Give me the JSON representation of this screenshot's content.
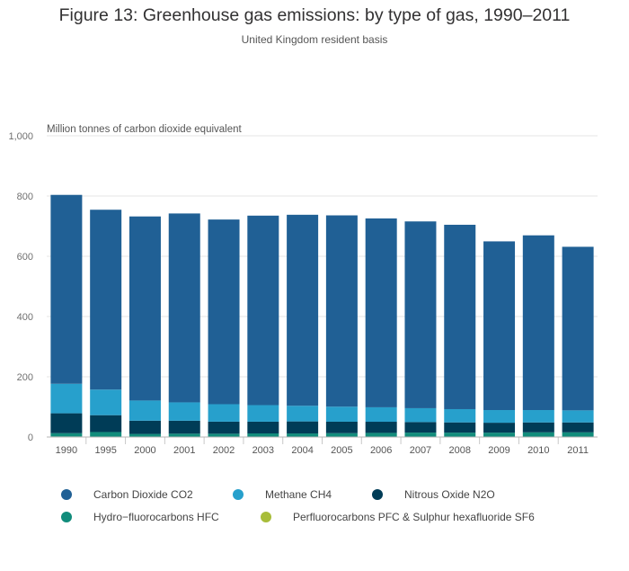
{
  "chart_data": {
    "type": "bar",
    "stacked": true,
    "title": "Figure 13: Greenhouse gas emissions: by type of gas, 1990–2011",
    "subtitle": "United Kingdom resident basis",
    "ylabel": "Million tonnes of carbon dioxide equivalent",
    "ylim": [
      0,
      1000
    ],
    "yticks": [
      0,
      200,
      400,
      600,
      800,
      1000
    ],
    "ytick_labels": [
      "0",
      "200",
      "400",
      "600",
      "800",
      "1,000"
    ],
    "grid": true,
    "legend_position": "bottom",
    "categories": [
      "1990",
      "1995",
      "2000",
      "2001",
      "2002",
      "2003",
      "2004",
      "2005",
      "2006",
      "2007",
      "2008",
      "2009",
      "2010",
      "2011"
    ],
    "series": [
      {
        "name": "Perfluorocarbons PFC & Sulphur hexafluoride SF6",
        "color": "#a8bd3a",
        "values": [
          1.8,
          1.5,
          1.2,
          1.1,
          1.0,
          0.9,
          0.8,
          0.8,
          0.7,
          0.7,
          0.6,
          0.5,
          0.5,
          0.5
        ]
      },
      {
        "name": "Hydro−fluorocarbons HFC",
        "color": "#118c7b",
        "values": [
          11,
          15,
          9,
          10,
          10,
          11,
          11,
          12,
          13,
          14,
          14,
          14,
          15,
          15
        ]
      },
      {
        "name": "Nitrous Oxide N2O",
        "color": "#003c57",
        "values": [
          66,
          56,
          44,
          43,
          40,
          39,
          40,
          38,
          37,
          35,
          34,
          33,
          33,
          33
        ]
      },
      {
        "name": "Methane CH4",
        "color": "#27a0cc",
        "values": [
          98,
          85,
          67,
          61,
          58,
          55,
          52,
          50,
          48,
          46,
          44,
          42,
          41,
          40
        ]
      },
      {
        "name": "Carbon Dioxide CO2",
        "color": "#206095",
        "values": [
          627,
          597,
          611,
          627,
          613,
          629,
          634,
          635,
          627,
          620,
          612,
          560,
          580,
          543
        ]
      }
    ],
    "legend": [
      {
        "name": "Carbon Dioxide CO2",
        "color": "#206095"
      },
      {
        "name": "Methane CH4",
        "color": "#27a0cc"
      },
      {
        "name": "Nitrous Oxide N2O",
        "color": "#003c57"
      },
      {
        "name": "Hydro−fluorocarbons HFC",
        "color": "#118c7b"
      },
      {
        "name": "Perfluorocarbons PFC & Sulphur hexafluoride SF6",
        "color": "#a8bd3a"
      }
    ]
  }
}
